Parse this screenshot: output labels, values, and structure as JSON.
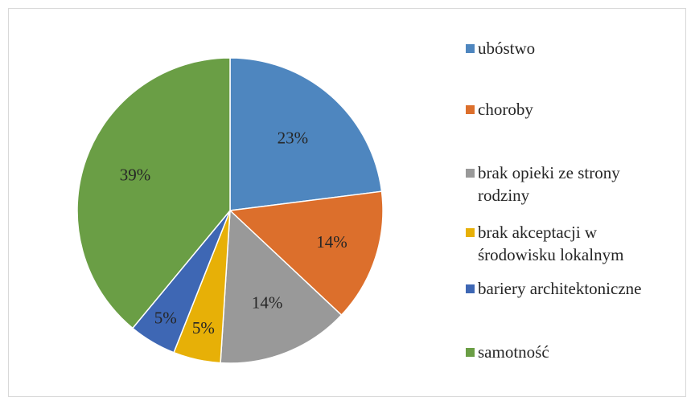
{
  "chart_data": {
    "type": "pie",
    "title": "",
    "slices": [
      {
        "label": "ubóstwo",
        "value": 23,
        "value_label": "23%",
        "color": "#4e86bf"
      },
      {
        "label": "choroby",
        "value": 14,
        "value_label": "14%",
        "color": "#dc6f2c"
      },
      {
        "label": "brak opieki ze strony\nrodziny",
        "value": 14,
        "value_label": "14%",
        "color": "#999999"
      },
      {
        "label": "brak akceptacji w\nśrodowisku lokalnym",
        "value": 5,
        "value_label": "5%",
        "color": "#e7b007"
      },
      {
        "label": "bariery architektoniczne",
        "value": 5,
        "value_label": "5%",
        "color": "#3e67b4"
      },
      {
        "label": "samotność",
        "value": 39,
        "value_label": "39%",
        "color": "#6a9e45"
      }
    ],
    "legend_position": "right"
  }
}
